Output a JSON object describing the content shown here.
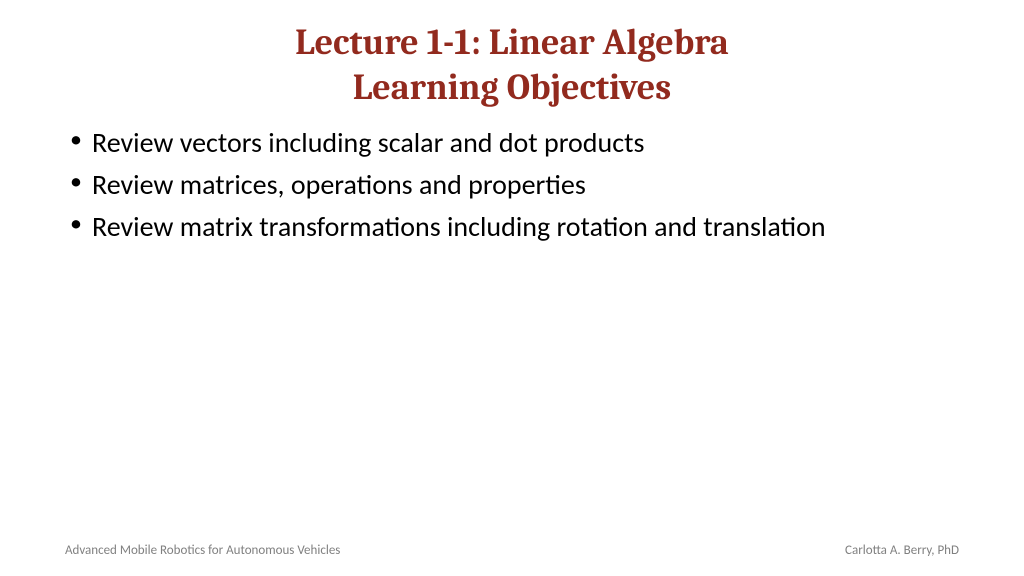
{
  "title": {
    "line1": "Lecture 1-1: Linear Algebra",
    "line2": "Learning Objectives",
    "color": "#922a1e",
    "fontsize": 36
  },
  "bullets": {
    "items": [
      "Review vectors including scalar and dot products",
      "Review matrices, operations and properties",
      "Review matrix transformations including rotation and translation"
    ],
    "color": "#000000",
    "fontsize": 28
  },
  "footer": {
    "left": "Advanced Mobile Robotics for Autonomous Vehicles",
    "right": "Carlotta A. Berry, PhD",
    "color": "#808080",
    "fontsize": 13
  },
  "background_color": "#ffffff"
}
